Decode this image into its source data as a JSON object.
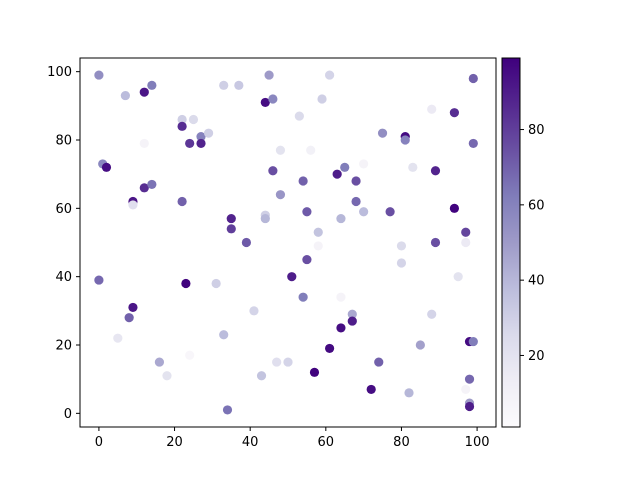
{
  "chart_data": {
    "type": "scatter",
    "title": "",
    "xlabel": "",
    "ylabel": "",
    "xlim": [
      -5,
      105
    ],
    "ylim": [
      -4,
      104
    ],
    "xticks": [
      0,
      20,
      40,
      60,
      80,
      100
    ],
    "yticks": [
      0,
      20,
      40,
      60,
      80,
      100
    ],
    "colormap": "Purples",
    "colorbar": {
      "range": [
        1,
        99
      ],
      "ticks": [
        20,
        40,
        60,
        80
      ]
    },
    "grid": false,
    "points": [
      {
        "x": 0,
        "y": 99,
        "c": 55
      },
      {
        "x": 7,
        "y": 93,
        "c": 38
      },
      {
        "x": 12,
        "y": 94,
        "c": 92
      },
      {
        "x": 14,
        "y": 96,
        "c": 62
      },
      {
        "x": 22,
        "y": 86,
        "c": 30
      },
      {
        "x": 22,
        "y": 84,
        "c": 85
      },
      {
        "x": 25,
        "y": 86,
        "c": 25
      },
      {
        "x": 27,
        "y": 81,
        "c": 60
      },
      {
        "x": 29,
        "y": 82,
        "c": 30
      },
      {
        "x": 33,
        "y": 96,
        "c": 30
      },
      {
        "x": 37,
        "y": 96,
        "c": 33
      },
      {
        "x": 44,
        "y": 91,
        "c": 95
      },
      {
        "x": 45,
        "y": 99,
        "c": 50
      },
      {
        "x": 46,
        "y": 92,
        "c": 58
      },
      {
        "x": 53,
        "y": 87,
        "c": 25
      },
      {
        "x": 59,
        "y": 92,
        "c": 30
      },
      {
        "x": 61,
        "y": 99,
        "c": 28
      },
      {
        "x": 12,
        "y": 79,
        "c": 8
      },
      {
        "x": 24,
        "y": 79,
        "c": 82
      },
      {
        "x": 27,
        "y": 79,
        "c": 88
      },
      {
        "x": 1,
        "y": 73,
        "c": 58
      },
      {
        "x": 2,
        "y": 72,
        "c": 95
      },
      {
        "x": 12,
        "y": 66,
        "c": 85
      },
      {
        "x": 14,
        "y": 67,
        "c": 65
      },
      {
        "x": 9,
        "y": 62,
        "c": 92
      },
      {
        "x": 9,
        "y": 61,
        "c": 22
      },
      {
        "x": 22,
        "y": 62,
        "c": 70
      },
      {
        "x": 35,
        "y": 57,
        "c": 88
      },
      {
        "x": 35,
        "y": 54,
        "c": 80
      },
      {
        "x": 39,
        "y": 50,
        "c": 72
      },
      {
        "x": 44,
        "y": 58,
        "c": 30
      },
      {
        "x": 44,
        "y": 57,
        "c": 40
      },
      {
        "x": 46,
        "y": 71,
        "c": 75
      },
      {
        "x": 48,
        "y": 77,
        "c": 20
      },
      {
        "x": 48,
        "y": 64,
        "c": 52
      },
      {
        "x": 54,
        "y": 68,
        "c": 70
      },
      {
        "x": 55,
        "y": 59,
        "c": 72
      },
      {
        "x": 56,
        "y": 77,
        "c": 10
      },
      {
        "x": 58,
        "y": 53,
        "c": 35
      },
      {
        "x": 58,
        "y": 49,
        "c": 8
      },
      {
        "x": 63,
        "y": 70,
        "c": 90
      },
      {
        "x": 64,
        "y": 57,
        "c": 40
      },
      {
        "x": 65,
        "y": 72,
        "c": 62
      },
      {
        "x": 68,
        "y": 68,
        "c": 75
      },
      {
        "x": 68,
        "y": 62,
        "c": 68
      },
      {
        "x": 70,
        "y": 59,
        "c": 38
      },
      {
        "x": 70,
        "y": 73,
        "c": 8
      },
      {
        "x": 75,
        "y": 82,
        "c": 55
      },
      {
        "x": 77,
        "y": 59,
        "c": 75
      },
      {
        "x": 80,
        "y": 49,
        "c": 25
      },
      {
        "x": 80,
        "y": 44,
        "c": 28
      },
      {
        "x": 81,
        "y": 81,
        "c": 96
      },
      {
        "x": 81,
        "y": 80,
        "c": 60
      },
      {
        "x": 83,
        "y": 72,
        "c": 20
      },
      {
        "x": 88,
        "y": 89,
        "c": 15
      },
      {
        "x": 89,
        "y": 71,
        "c": 88
      },
      {
        "x": 89,
        "y": 50,
        "c": 75
      },
      {
        "x": 94,
        "y": 88,
        "c": 85
      },
      {
        "x": 94,
        "y": 60,
        "c": 98
      },
      {
        "x": 97,
        "y": 53,
        "c": 78
      },
      {
        "x": 97,
        "y": 50,
        "c": 15
      },
      {
        "x": 99,
        "y": 98,
        "c": 70
      },
      {
        "x": 99,
        "y": 79,
        "c": 68
      },
      {
        "x": 0,
        "y": 39,
        "c": 68
      },
      {
        "x": 5,
        "y": 22,
        "c": 18
      },
      {
        "x": 8,
        "y": 28,
        "c": 70
      },
      {
        "x": 9,
        "y": 31,
        "c": 92
      },
      {
        "x": 16,
        "y": 15,
        "c": 45
      },
      {
        "x": 18,
        "y": 11,
        "c": 20
      },
      {
        "x": 23,
        "y": 38,
        "c": 98
      },
      {
        "x": 24,
        "y": 17,
        "c": 5
      },
      {
        "x": 31,
        "y": 38,
        "c": 30
      },
      {
        "x": 33,
        "y": 23,
        "c": 38
      },
      {
        "x": 34,
        "y": 1,
        "c": 65
      },
      {
        "x": 41,
        "y": 30,
        "c": 28
      },
      {
        "x": 43,
        "y": 11,
        "c": 35
      },
      {
        "x": 47,
        "y": 15,
        "c": 22
      },
      {
        "x": 50,
        "y": 15,
        "c": 28
      },
      {
        "x": 51,
        "y": 40,
        "c": 90
      },
      {
        "x": 54,
        "y": 34,
        "c": 62
      },
      {
        "x": 55,
        "y": 45,
        "c": 75
      },
      {
        "x": 57,
        "y": 12,
        "c": 98
      },
      {
        "x": 61,
        "y": 19,
        "c": 96
      },
      {
        "x": 64,
        "y": 25,
        "c": 95
      },
      {
        "x": 64,
        "y": 34,
        "c": 8
      },
      {
        "x": 67,
        "y": 29,
        "c": 45
      },
      {
        "x": 67,
        "y": 27,
        "c": 90
      },
      {
        "x": 72,
        "y": 7,
        "c": 95
      },
      {
        "x": 74,
        "y": 15,
        "c": 70
      },
      {
        "x": 82,
        "y": 6,
        "c": 40
      },
      {
        "x": 85,
        "y": 20,
        "c": 48
      },
      {
        "x": 88,
        "y": 29,
        "c": 28
      },
      {
        "x": 95,
        "y": 40,
        "c": 20
      },
      {
        "x": 97,
        "y": 7,
        "c": 8
      },
      {
        "x": 98,
        "y": 21,
        "c": 96
      },
      {
        "x": 99,
        "y": 21,
        "c": 62
      },
      {
        "x": 98,
        "y": 10,
        "c": 68
      },
      {
        "x": 98,
        "y": 3,
        "c": 50
      },
      {
        "x": 98,
        "y": 2,
        "c": 90
      }
    ]
  }
}
